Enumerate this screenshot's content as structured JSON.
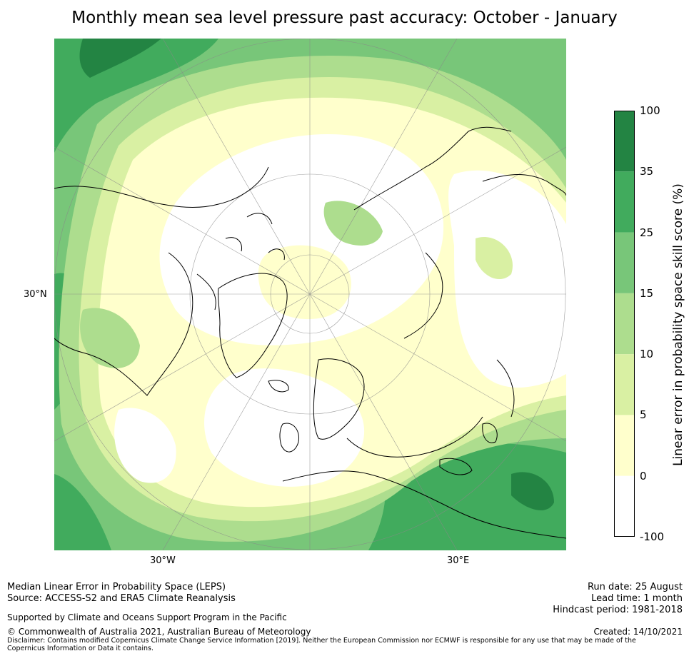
{
  "title": "Monthly mean sea level pressure past accuracy: October - January",
  "map": {
    "projection": "north-polar-stereographic",
    "lon_labels": {
      "west": "30°W",
      "east": "30°E"
    },
    "lat_label": "30°N",
    "colors": {
      "white": "#ffffff",
      "pale_yellow": "#ffffcc",
      "light_yellow_green": "#d9f0a3",
      "light_green": "#addd8e",
      "mid_green": "#78c679",
      "green": "#41ab5d",
      "dark_green": "#238443"
    }
  },
  "colorbar": {
    "title": "Linear error in probability space skill score (%)",
    "ticks": [
      "100",
      "35",
      "25",
      "15",
      "10",
      "5",
      "0",
      "-100"
    ],
    "colors": [
      "#238443",
      "#41ab5d",
      "#78c679",
      "#addd8e",
      "#d9f0a3",
      "#ffffcc",
      "#ffffff"
    ]
  },
  "footer": {
    "left_line1": "Median Linear Error in Probability Space (LEPS)",
    "left_line2": "Source: ACCESS-S2 and ERA5 Climate Reanalysis",
    "support": "Supported by Climate and Oceans Support Program in the Pacific",
    "copyright": "© Commonwealth of Australia 2021, Australian Bureau of Meteorology",
    "disclaimer": "Disclaimer: Contains modified Copernicus Climate Change Service Information [2019]. Neither the European Commission nor ECMWF is responsible for any use that may be made of the Copernicus Information or Data it contains.",
    "run_date": "Run date: 25 August",
    "lead_time": "Lead time: 1 month",
    "hindcast": "Hindcast period: 1981-2018",
    "created": "Created: 14/10/2021"
  }
}
